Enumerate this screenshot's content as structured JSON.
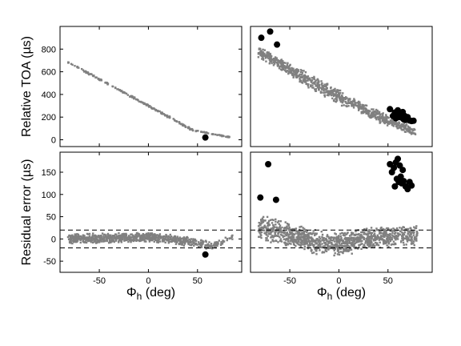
{
  "chart_data": [
    {
      "type": "scatter",
      "panel": "top-left",
      "ylabel": "Relative TOA (µs)",
      "xlabel": "",
      "xlim": [
        -90,
        95
      ],
      "ylim": [
        -60,
        1000
      ],
      "yticks": [
        0,
        200,
        400,
        600,
        800
      ],
      "xticks": [],
      "series": [
        {
          "color": "#808080",
          "segments": [
            {
              "x0": -82,
              "y0": 685,
              "x1": 0,
              "y1": 300,
              "n": 120,
              "spread": 10
            },
            {
              "x0": 0,
              "y0": 300,
              "x1": 45,
              "y1": 85,
              "n": 80,
              "spread": 10
            },
            {
              "x0": 45,
              "y0": 85,
              "x1": 85,
              "y1": 18,
              "n": 40,
              "spread": 6
            }
          ]
        },
        {
          "color": "#000000",
          "points": [
            {
              "x": 58,
              "y": 20
            }
          ]
        }
      ]
    },
    {
      "type": "scatter",
      "panel": "top-right",
      "ylabel": "",
      "xlabel": "",
      "xlim": [
        -90,
        95
      ],
      "ylim": [
        -60,
        1000
      ],
      "yticks": [],
      "xticks": [],
      "series": [
        {
          "color": "#808080",
          "segments": [
            {
              "x0": -82,
              "y0": 780,
              "x1": -40,
              "y1": 570,
              "n": 220,
              "spread": 55
            },
            {
              "x0": -40,
              "y0": 570,
              "x1": 10,
              "y1": 330,
              "n": 260,
              "spread": 70
            },
            {
              "x0": 10,
              "y0": 330,
              "x1": 50,
              "y1": 165,
              "n": 220,
              "spread": 55
            },
            {
              "x0": 50,
              "y0": 165,
              "x1": 78,
              "y1": 70,
              "n": 120,
              "spread": 40
            }
          ]
        },
        {
          "color": "#000000",
          "points": [
            {
              "x": -79,
              "y": 900
            },
            {
              "x": -70,
              "y": 955
            },
            {
              "x": -63,
              "y": 840
            },
            {
              "x": 52,
              "y": 270
            },
            {
              "x": 55,
              "y": 210
            },
            {
              "x": 57,
              "y": 240
            },
            {
              "x": 58,
              "y": 190
            },
            {
              "x": 59,
              "y": 225
            },
            {
              "x": 60,
              "y": 260
            },
            {
              "x": 61,
              "y": 200
            },
            {
              "x": 62,
              "y": 235
            },
            {
              "x": 63,
              "y": 215
            },
            {
              "x": 64,
              "y": 195
            },
            {
              "x": 65,
              "y": 245
            },
            {
              "x": 66,
              "y": 180
            },
            {
              "x": 67,
              "y": 210
            },
            {
              "x": 68,
              "y": 175
            },
            {
              "x": 70,
              "y": 200
            },
            {
              "x": 72,
              "y": 170
            },
            {
              "x": 74,
              "y": 165
            },
            {
              "x": 76,
              "y": 168
            }
          ]
        }
      ]
    },
    {
      "type": "scatter",
      "panel": "bottom-left",
      "ylabel": "Residual error (µs)",
      "xlabel": "Φh (deg)",
      "xlim": [
        -90,
        95
      ],
      "ylim": [
        -75,
        195
      ],
      "yticks": [
        -50,
        0,
        50,
        100,
        150
      ],
      "xticks": [
        -50,
        0,
        50
      ],
      "hlines": [
        20,
        -20
      ],
      "series": [
        {
          "color": "#808080",
          "segments": [
            {
              "x0": -82,
              "y0": 0,
              "x1": -40,
              "y1": 2,
              "n": 240,
              "spread": 12
            },
            {
              "x0": -40,
              "y0": 2,
              "x1": 0,
              "y1": 4,
              "n": 220,
              "spread": 12
            },
            {
              "x0": 0,
              "y0": 4,
              "x1": 40,
              "y1": -5,
              "n": 200,
              "spread": 12
            },
            {
              "x0": 40,
              "y0": -5,
              "x1": 62,
              "y1": -15,
              "n": 80,
              "spread": 12
            },
            {
              "x0": 62,
              "y0": -20,
              "x1": 86,
              "y1": 5,
              "n": 50,
              "spread": 8
            }
          ]
        },
        {
          "color": "#000000",
          "points": [
            {
              "x": 58,
              "y": -35
            }
          ]
        }
      ]
    },
    {
      "type": "scatter",
      "panel": "bottom-right",
      "ylabel": "",
      "xlabel": "Φh (deg)",
      "xlim": [
        -90,
        95
      ],
      "ylim": [
        -75,
        195
      ],
      "yticks": [],
      "xticks": [
        -50,
        0,
        50
      ],
      "hlines": [
        20,
        -20
      ],
      "series": [
        {
          "color": "#808080",
          "segments": [
            {
              "x0": -82,
              "y0": 25,
              "x1": -50,
              "y1": 10,
              "n": 220,
              "spread": 30
            },
            {
              "x0": -50,
              "y0": 10,
              "x1": -10,
              "y1": -15,
              "n": 320,
              "spread": 28
            },
            {
              "x0": -10,
              "y0": -15,
              "x1": 30,
              "y1": 0,
              "n": 300,
              "spread": 28
            },
            {
              "x0": 30,
              "y0": 0,
              "x1": 80,
              "y1": 10,
              "n": 320,
              "spread": 25
            }
          ]
        },
        {
          "color": "#000000",
          "points": [
            {
              "x": -80,
              "y": 93
            },
            {
              "x": -72,
              "y": 168
            },
            {
              "x": -64,
              "y": 88
            },
            {
              "x": 52,
              "y": 168
            },
            {
              "x": 54,
              "y": 150
            },
            {
              "x": 56,
              "y": 160
            },
            {
              "x": 57,
              "y": 118
            },
            {
              "x": 58,
              "y": 172
            },
            {
              "x": 59,
              "y": 135
            },
            {
              "x": 60,
              "y": 180
            },
            {
              "x": 61,
              "y": 128
            },
            {
              "x": 62,
              "y": 165
            },
            {
              "x": 63,
              "y": 140
            },
            {
              "x": 64,
              "y": 125
            },
            {
              "x": 65,
              "y": 155
            },
            {
              "x": 66,
              "y": 130
            },
            {
              "x": 68,
              "y": 118
            },
            {
              "x": 70,
              "y": 112
            },
            {
              "x": 72,
              "y": 128
            },
            {
              "x": 74,
              "y": 120
            }
          ]
        }
      ]
    }
  ]
}
